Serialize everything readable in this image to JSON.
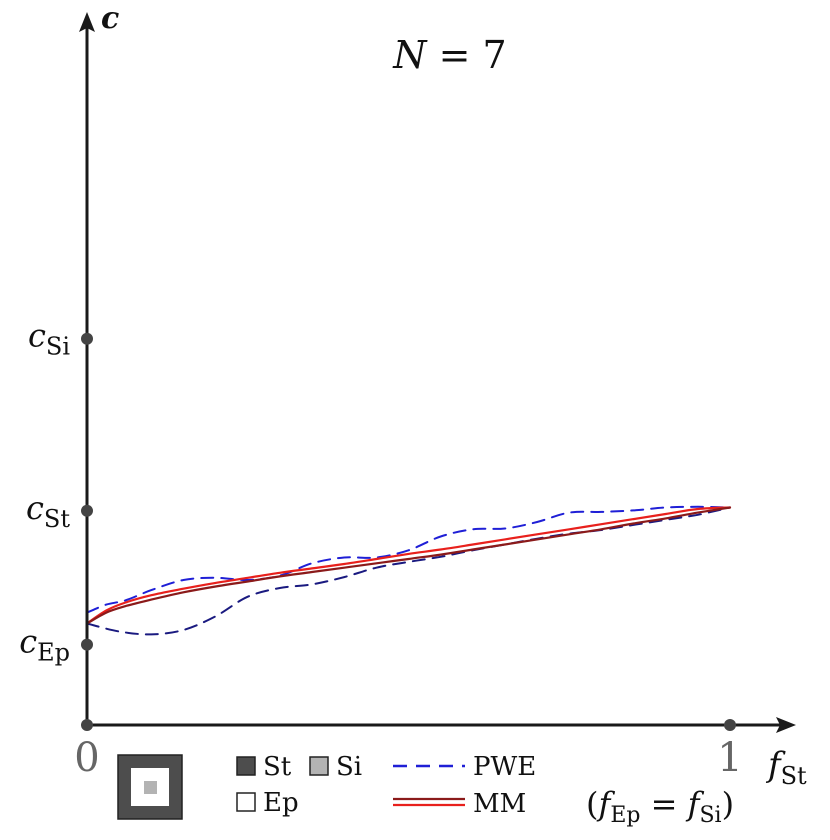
{
  "chart_data": {
    "type": "line",
    "title": "N = 7",
    "title_parts": {
      "var": "N",
      "rest": " = 7"
    },
    "xlabel": {
      "main": "f",
      "sub": "St"
    },
    "xlabel_note": {
      "open": "(",
      "f1": "f",
      "s1": "Ep",
      "eq": " = ",
      "f2": "f",
      "s2": "Si",
      "close": ")"
    },
    "ylabel": "c",
    "xlim": [
      0,
      1
    ],
    "ylim": [
      0,
      1
    ],
    "x_ticks": [
      {
        "value": 0,
        "label": "0"
      },
      {
        "value": 1,
        "label": "1"
      }
    ],
    "y_ticks": [
      {
        "value": 0.5328,
        "main": "c",
        "sub": "Si"
      },
      {
        "value": 0.2955,
        "main": "c",
        "sub": "St"
      },
      {
        "value": 0.1109,
        "main": "c",
        "sub": "Ep"
      }
    ],
    "origin_marker": {
      "x": 0,
      "y": 0
    },
    "series": [
      {
        "name": "PWE",
        "style": "dashed",
        "color": "#1f1fd6",
        "x": [
          0,
          0.03,
          0.06,
          0.1,
          0.15,
          0.2,
          0.25,
          0.3,
          0.35,
          0.4,
          0.45,
          0.5,
          0.55,
          0.6,
          0.65,
          0.7,
          0.75,
          0.8,
          0.85,
          0.9,
          0.95,
          1.0
        ],
        "y": [
          0.155,
          0.166,
          0.172,
          0.186,
          0.2,
          0.203,
          0.2,
          0.206,
          0.223,
          0.231,
          0.231,
          0.241,
          0.26,
          0.27,
          0.271,
          0.28,
          0.293,
          0.294,
          0.296,
          0.3,
          0.301,
          0.3
        ]
      },
      {
        "name": "PWE",
        "style": "dashed",
        "color": "#1a1a80",
        "x": [
          0,
          0.05,
          0.1,
          0.15,
          0.2,
          0.25,
          0.3,
          0.35,
          0.4,
          0.45,
          0.5,
          0.55,
          0.6,
          0.65,
          0.7,
          0.75,
          0.8,
          0.85,
          0.9,
          0.95,
          1.0
        ],
        "y": [
          0.14,
          0.129,
          0.125,
          0.131,
          0.15,
          0.177,
          0.189,
          0.194,
          0.204,
          0.217,
          0.225,
          0.232,
          0.241,
          0.249,
          0.257,
          0.264,
          0.269,
          0.276,
          0.283,
          0.29,
          0.3
        ]
      },
      {
        "name": "MM",
        "style": "solid",
        "color": "#e8201c",
        "x": [
          0,
          0.03,
          0.06,
          0.1,
          0.15,
          0.2,
          0.25,
          0.3,
          0.35,
          0.4,
          0.45,
          0.5,
          0.55,
          0.6,
          0.65,
          0.7,
          0.75,
          0.8,
          0.85,
          0.9,
          0.95,
          1.0
        ],
        "y": [
          0.14,
          0.158,
          0.169,
          0.179,
          0.188,
          0.196,
          0.203,
          0.21,
          0.216,
          0.222,
          0.229,
          0.236,
          0.242,
          0.249,
          0.256,
          0.263,
          0.27,
          0.277,
          0.284,
          0.291,
          0.298,
          0.3
        ]
      },
      {
        "name": "MM",
        "style": "solid",
        "color": "#8b1a1a",
        "x": [
          0,
          0.03,
          0.06,
          0.1,
          0.15,
          0.2,
          0.25,
          0.3,
          0.35,
          0.4,
          0.45,
          0.5,
          0.55,
          0.6,
          0.65,
          0.7,
          0.75,
          0.8,
          0.85,
          0.9,
          0.95,
          1.0
        ],
        "y": [
          0.14,
          0.155,
          0.164,
          0.173,
          0.183,
          0.191,
          0.198,
          0.205,
          0.211,
          0.217,
          0.223,
          0.229,
          0.235,
          0.242,
          0.249,
          0.256,
          0.263,
          0.27,
          0.278,
          0.285,
          0.293,
          0.3
        ]
      }
    ],
    "legend": {
      "placement": "bottom",
      "materials": [
        {
          "label": "St",
          "color": "#4d4d4d"
        },
        {
          "label": "Si",
          "color": "#b3b3b3"
        },
        {
          "label": "Ep",
          "color": "#ffffff"
        }
      ],
      "lines": [
        {
          "label": "PWE",
          "style": "dashed",
          "colors": [
            "#1f1fd6"
          ]
        },
        {
          "label": "MM",
          "style": "solid",
          "colors": [
            "#8b1a1a",
            "#e8201c"
          ]
        }
      ]
    },
    "colors": {
      "axis": "#1a1a1a",
      "marker": "#444444",
      "st": "#4d4d4d",
      "si": "#b3b3b3",
      "ep": "#ffffff"
    }
  }
}
